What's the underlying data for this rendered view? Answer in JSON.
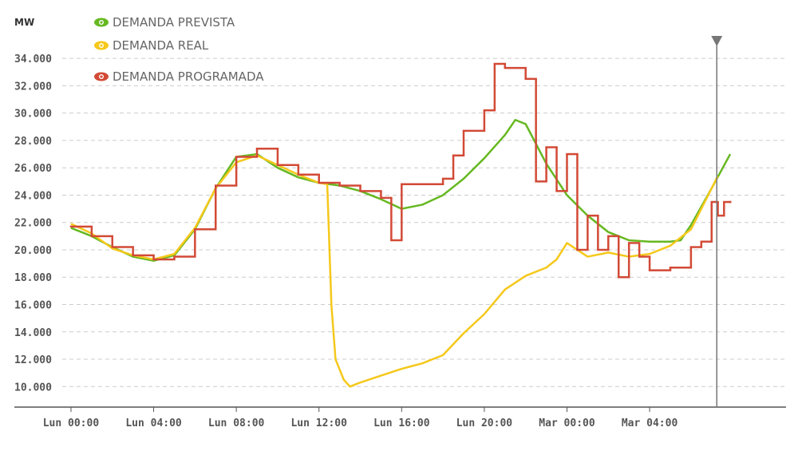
{
  "chart_data": {
    "type": "line",
    "y_label": "MW",
    "xlim": [
      -2.74,
      34.6
    ],
    "ylim": [
      8500,
      35000
    ],
    "xticks": [
      {
        "value": 0,
        "label": "Lun 00:00"
      },
      {
        "value": 4,
        "label": "Lun 04:00"
      },
      {
        "value": 8,
        "label": "Lun 08:00"
      },
      {
        "value": 12,
        "label": "Lun 12:00"
      },
      {
        "value": 16,
        "label": "Lun 16:00"
      },
      {
        "value": 20,
        "label": "Lun 20:00"
      },
      {
        "value": 24,
        "label": "Mar 00:00"
      },
      {
        "value": 28,
        "label": "Mar 04:00"
      }
    ],
    "yticks": [
      {
        "value": 10000,
        "label": "10.000"
      },
      {
        "value": 12000,
        "label": "12.000"
      },
      {
        "value": 14000,
        "label": "14.000"
      },
      {
        "value": 16000,
        "label": "16.000"
      },
      {
        "value": 18000,
        "label": "18.000"
      },
      {
        "value": 20000,
        "label": "20.000"
      },
      {
        "value": 22000,
        "label": "22.000"
      },
      {
        "value": 24000,
        "label": "24.000"
      },
      {
        "value": 26000,
        "label": "26.000"
      },
      {
        "value": 28000,
        "label": "28.000"
      },
      {
        "value": 30000,
        "label": "30.000"
      },
      {
        "value": 32000,
        "label": "32.000"
      },
      {
        "value": 34000,
        "label": "34.000"
      }
    ],
    "grid": true,
    "legend": "top-left",
    "marker_x": 31.25,
    "series": [
      {
        "name": "DEMANDA PREVISTA",
        "color": "#66b821",
        "x": [
          0,
          1,
          2,
          3,
          4,
          5,
          6,
          7,
          8,
          9,
          10,
          11,
          12,
          13,
          14,
          15,
          16,
          17,
          18,
          19,
          20,
          21,
          21.5,
          22,
          23,
          24,
          25,
          26,
          27,
          28,
          29,
          29.5,
          30,
          31,
          31.9
        ],
        "values": [
          21600,
          21000,
          20200,
          19500,
          19200,
          19600,
          21500,
          24500,
          26800,
          27000,
          26000,
          25300,
          24900,
          24700,
          24300,
          23700,
          23000,
          23300,
          24000,
          25200,
          26700,
          28400,
          29500,
          29200,
          26300,
          24000,
          22500,
          21300,
          20700,
          20600,
          20600,
          20700,
          21800,
          24500,
          27000
        ]
      },
      {
        "name": "DEMANDA REAL",
        "color": "#f5c81b",
        "x": [
          0,
          1,
          2,
          3,
          4,
          5,
          6,
          7,
          8,
          9,
          10,
          11,
          12,
          12.4,
          12.6,
          12.8,
          13.2,
          13.5,
          14,
          15,
          16,
          17,
          18,
          19,
          20,
          21,
          22,
          23,
          23.5,
          24,
          25,
          26,
          27,
          28,
          29,
          30,
          31,
          31.3
        ],
        "values": [
          21900,
          21200,
          20100,
          19600,
          19300,
          19700,
          21600,
          24500,
          26400,
          26900,
          26200,
          25500,
          24900,
          24800,
          16000,
          12000,
          10500,
          10000,
          10300,
          10800,
          11300,
          11700,
          12300,
          13900,
          15300,
          17100,
          18100,
          18700,
          19300,
          20500,
          19500,
          19800,
          19500,
          19700,
          20300,
          21500,
          24500,
          25400
        ]
      },
      {
        "name": "DEMANDA PROGRAMADA",
        "color": "#d24a36",
        "step": true,
        "x": [
          0,
          1,
          2,
          3,
          4,
          5,
          6,
          7,
          8,
          9,
          10,
          11,
          12,
          13,
          14,
          15,
          15.5,
          16,
          17,
          18,
          18.5,
          19,
          20,
          20.5,
          21,
          22,
          22.5,
          23,
          23.5,
          24,
          24.5,
          25,
          25.5,
          26,
          26.5,
          27,
          27.5,
          28,
          29,
          30,
          30.5,
          31,
          31.3,
          31.6,
          31.9
        ],
        "values": [
          21700,
          21000,
          20200,
          19600,
          19300,
          19500,
          21500,
          24700,
          26800,
          27400,
          26200,
          25500,
          24900,
          24700,
          24300,
          23800,
          20700,
          24800,
          24800,
          25200,
          26900,
          28700,
          30200,
          33600,
          33300,
          32500,
          25000,
          27500,
          24300,
          27000,
          20000,
          22500,
          20000,
          21000,
          18000,
          20500,
          19500,
          18500,
          18700,
          20200,
          20600,
          23500,
          22500,
          23500,
          23500
        ]
      }
    ]
  }
}
